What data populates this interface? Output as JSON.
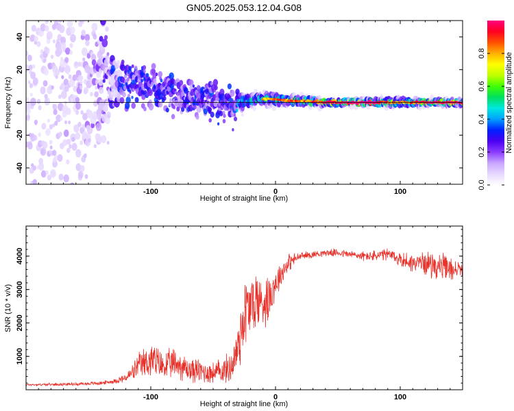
{
  "title": "GN05.2025.053.12.04.G08",
  "colors": {
    "snr_line": "#e8312a",
    "zero_line": "#000000",
    "colormap": [
      "#ffffff",
      "#e6d8ff",
      "#c9a6ff",
      "#8a3cff",
      "#4a00f0",
      "#0020ff",
      "#00a0ff",
      "#00e8e0",
      "#00e060",
      "#40ff00",
      "#c0ff00",
      "#ffff00",
      "#ffb000",
      "#ff5000",
      "#ff0020",
      "#ff0080"
    ]
  },
  "chart_data": [
    {
      "type": "heatmap",
      "xlabel": "Height of straight line (km)",
      "ylabel": "Frequency (Hz)",
      "xlim": [
        -200,
        150
      ],
      "ylim": [
        -50,
        50
      ],
      "x_ticks": [
        -100,
        0,
        100
      ],
      "x_tick_labels": [
        "-100",
        "0",
        "100"
      ],
      "y_ticks": [
        -40,
        -20,
        0,
        20,
        40
      ],
      "y_tick_labels": [
        "-40",
        "-20",
        "0",
        "20",
        "40"
      ],
      "grid": false,
      "zero_line": 0,
      "ridge": {
        "x": [
          -200,
          -150,
          -130,
          -110,
          -100,
          -90,
          -80,
          -70,
          -60,
          -50,
          -40,
          -35,
          -30,
          -20,
          -10,
          0,
          10,
          20,
          40,
          60,
          80,
          100,
          120,
          150
        ],
        "freq": [
          10,
          10,
          12,
          12,
          10,
          7,
          5,
          3,
          2,
          1,
          -1,
          -2,
          0,
          1,
          2,
          2,
          1,
          1,
          0,
          0,
          0,
          0,
          0,
          0
        ],
        "spread": [
          45,
          40,
          7,
          6,
          6,
          5,
          5,
          5,
          5,
          5,
          5,
          5,
          3,
          2,
          2,
          2,
          1.5,
          1.5,
          1,
          1,
          1,
          1.5,
          1,
          1
        ],
        "amplitude": [
          0.1,
          0.15,
          0.3,
          0.3,
          0.3,
          0.3,
          0.3,
          0.3,
          0.3,
          0.3,
          0.3,
          0.3,
          0.4,
          0.45,
          0.5,
          0.55,
          0.6,
          0.6,
          0.7,
          0.8,
          0.8,
          0.5,
          0.75,
          0.75
        ]
      },
      "colorbar": {
        "label": "Normalized spectral amplitude",
        "range": [
          0,
          1
        ],
        "ticks": [
          0.0,
          0.2,
          0.4,
          0.6,
          0.8
        ],
        "tick_labels": [
          "0.0",
          "0.2",
          "0.4",
          "0.6",
          "0.8"
        ]
      }
    },
    {
      "type": "line",
      "xlabel": "Height of straight line (km)",
      "ylabel": "SNR (10 * v/v)",
      "xlim": [
        -200,
        150
      ],
      "ylim": [
        0,
        4900
      ],
      "x_ticks": [
        -100,
        0,
        100
      ],
      "x_tick_labels": [
        "-100",
        "0",
        "100"
      ],
      "y_ticks": [
        1000,
        2000,
        3000,
        4000
      ],
      "y_tick_labels": [
        "1000",
        "2000",
        "3000",
        "4000"
      ],
      "grid": false,
      "series": [
        {
          "x": [
            -200,
            -180,
            -160,
            -140,
            -130,
            -120,
            -115,
            -110,
            -100,
            -90,
            -80,
            -70,
            -60,
            -50,
            -40,
            -35,
            -30,
            -28,
            -25,
            -20,
            -15,
            -10,
            -5,
            0,
            5,
            10,
            15,
            20,
            30,
            40,
            50,
            60,
            70,
            80,
            90,
            100,
            110,
            120,
            130,
            140,
            150
          ],
          "values": [
            150,
            160,
            170,
            200,
            250,
            350,
            500,
            700,
            900,
            700,
            800,
            600,
            550,
            500,
            600,
            700,
            1300,
            1700,
            2300,
            2500,
            2700,
            2600,
            2800,
            3200,
            3500,
            3800,
            3900,
            4000,
            4050,
            4100,
            4100,
            4050,
            4000,
            4000,
            4050,
            3900,
            3800,
            3800,
            3700,
            3600,
            3600
          ],
          "noise": [
            40,
            40,
            50,
            60,
            70,
            150,
            250,
            400,
            600,
            450,
            500,
            400,
            400,
            350,
            450,
            500,
            900,
            1100,
            1200,
            1100,
            1000,
            800,
            800,
            500,
            400,
            300,
            200,
            120,
            120,
            100,
            120,
            130,
            150,
            180,
            200,
            250,
            300,
            350,
            450,
            400,
            200
          ]
        }
      ]
    }
  ]
}
